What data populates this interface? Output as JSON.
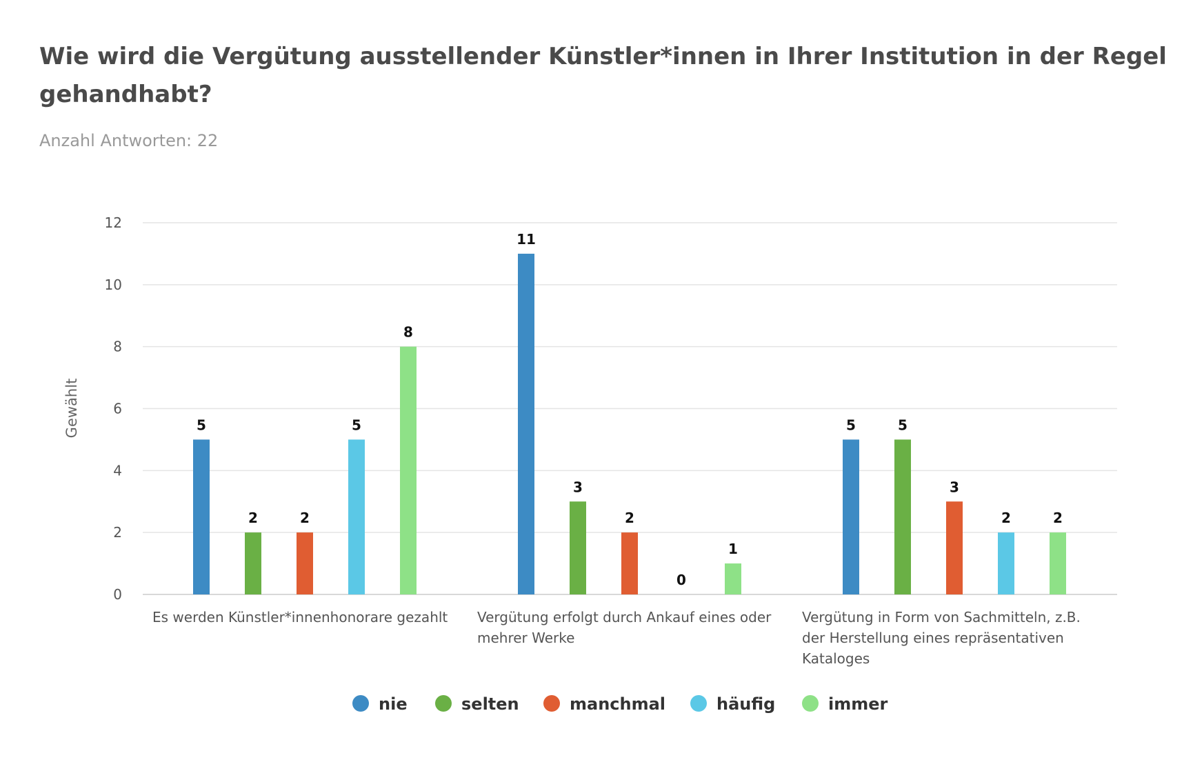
{
  "title_lines": [
    "Wie wird die Vergütung ausstellender Künstler*innen in Ihrer Institution in der Regel",
    "gehandhabt?"
  ],
  "subtitle": "Anzahl Antworten: 22",
  "chart_data": {
    "type": "bar",
    "title": "Wie wird die Vergütung ausstellender Künstler*innen in Ihrer Institution in der Regel gehandhabt?",
    "subtitle": "Anzahl Antworten: 22",
    "xlabel": "",
    "ylabel": "Gewählt",
    "ylim": [
      0,
      12
    ],
    "yticks": [
      0,
      2,
      4,
      6,
      8,
      10,
      12
    ],
    "grid": true,
    "legend_position": "bottom",
    "categories": [
      [
        "Es werden Künstler*innenhonorare gezahlt"
      ],
      [
        "Vergütung erfolgt durch Ankauf eines oder",
        "mehrer Werke"
      ],
      [
        "Vergütung in Form von Sachmitteln, z.B.",
        "der Herstellung eines repräsentativen",
        "Kataloges"
      ]
    ],
    "series": [
      {
        "name": "nie",
        "color": "#3d8bc4",
        "values": [
          5,
          11,
          5
        ]
      },
      {
        "name": "selten",
        "color": "#6ab045",
        "values": [
          2,
          3,
          5
        ]
      },
      {
        "name": "manchmal",
        "color": "#e05d32",
        "values": [
          2,
          2,
          3
        ]
      },
      {
        "name": "häufig",
        "color": "#5bc8e6",
        "values": [
          5,
          0,
          2
        ]
      },
      {
        "name": "immer",
        "color": "#8ee187",
        "values": [
          8,
          1,
          2
        ]
      }
    ]
  }
}
